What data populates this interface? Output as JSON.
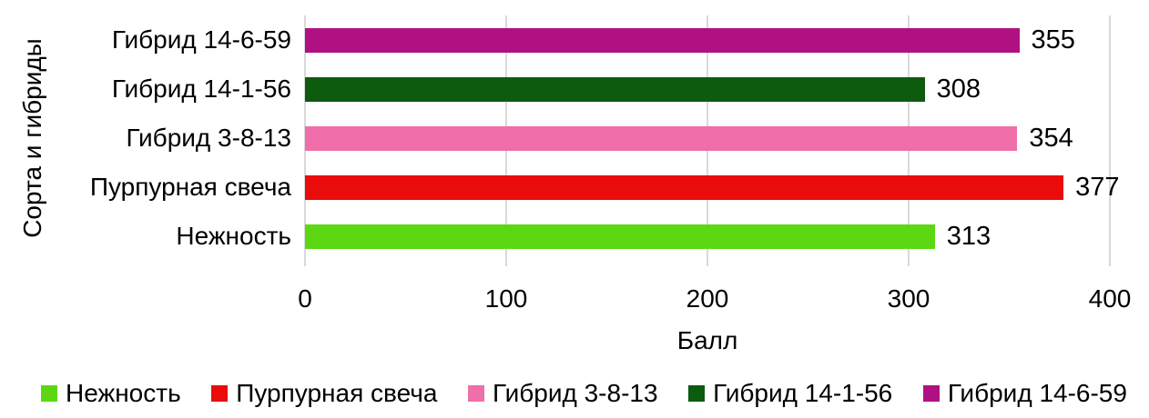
{
  "chart_data": {
    "type": "bar",
    "orientation": "horizontal",
    "xlabel": "Балл",
    "ylabel": "Сорта и гибриды",
    "xlim": [
      0,
      400
    ],
    "x_ticks": [
      0,
      100,
      200,
      300,
      400
    ],
    "grid": "vertical",
    "gridline_color": "#D9D9D9",
    "value_labels_shown": true,
    "categories": [
      "Гибрид 14-6-59",
      "Гибрид 14-1-56",
      "Гибрид 3-8-13",
      "Пурпурная свеча",
      "Нежность"
    ],
    "values": [
      355,
      308,
      354,
      377,
      313
    ],
    "colors": [
      "#B01182",
      "#0C5B0F",
      "#F06EA9",
      "#EA0B0B",
      "#5CD813"
    ],
    "legend_position": "bottom",
    "legend": [
      {
        "label": "Нежность",
        "color": "#5CD813"
      },
      {
        "label": "Пурпурная свеча",
        "color": "#EA0B0B"
      },
      {
        "label": "Гибрид 3-8-13",
        "color": "#F06EA9"
      },
      {
        "label": "Гибрид 14-1-56",
        "color": "#0C5B0F"
      },
      {
        "label": "Гибрид 14-6-59",
        "color": "#B01182"
      }
    ]
  }
}
